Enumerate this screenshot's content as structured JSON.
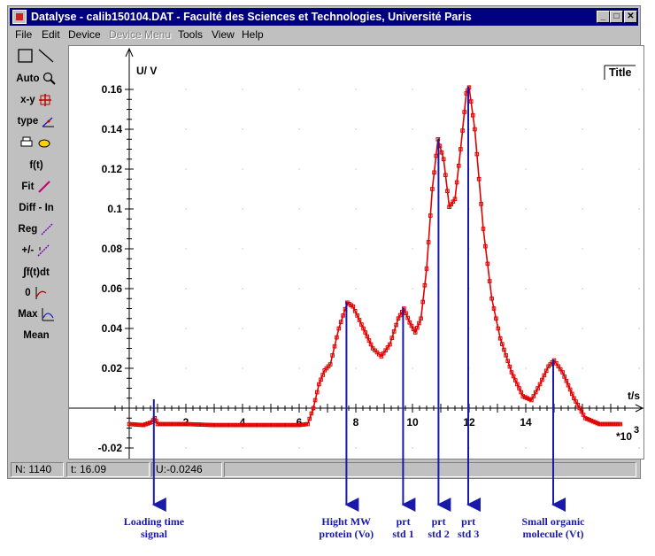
{
  "window": {
    "title": "Datalyse - calib150104.DAT - Faculté des Sciences et Technologies, Université Paris",
    "min_glyph": "_",
    "max_glyph": "□",
    "close_glyph": "✕"
  },
  "menu": [
    {
      "label": "File",
      "enabled": true
    },
    {
      "label": "Edit",
      "enabled": true
    },
    {
      "label": "Device",
      "enabled": true
    },
    {
      "label": "Device Menu",
      "enabled": false
    },
    {
      "label": "Tools",
      "enabled": true
    },
    {
      "label": "View",
      "enabled": true
    },
    {
      "label": "Help",
      "enabled": true
    }
  ],
  "toolbar": {
    "auto": "Auto",
    "xy": "x-y",
    "type": "type",
    "ft": "f(t)",
    "fit": "Fit",
    "diff": "Diff - In",
    "reg": "Reg",
    "pm": "+/-",
    "integral": "f(t)dt",
    "zero": "0",
    "max": "Max",
    "mean": "Mean"
  },
  "plot": {
    "title_button": "Title",
    "ylabel": "U/ V",
    "xlabel": "t/s",
    "x_exponent": "*10",
    "x_exponent_power": "3"
  },
  "chart_data": {
    "type": "scatter",
    "xlabel": "t/s (*10^3)",
    "ylabel": "U/ V",
    "xlim": [
      -0.9,
      17.9
    ],
    "ylim": [
      -0.025,
      0.172
    ],
    "xticks": [
      2,
      4,
      6,
      8,
      10,
      12,
      14
    ],
    "yticks": [
      -0.02,
      0.02,
      0.04,
      0.06,
      0.08,
      0.1,
      0.12,
      0.14,
      0.16
    ],
    "ytick_labels": [
      "-0.02",
      "0.02",
      "0.04",
      "0.06",
      "0.08",
      "0.1",
      "0.12",
      "0.14",
      "0.16"
    ],
    "grid": true,
    "series": [
      {
        "color": "#e00000",
        "points": [
          [
            0.0,
            -0.008
          ],
          [
            0.5,
            -0.0085
          ],
          [
            0.8,
            -0.007
          ],
          [
            0.9,
            -0.005
          ],
          [
            1.0,
            -0.008
          ],
          [
            2.0,
            -0.008
          ],
          [
            3.0,
            -0.0085
          ],
          [
            4.0,
            -0.0085
          ],
          [
            5.0,
            -0.0085
          ],
          [
            6.0,
            -0.0085
          ],
          [
            6.3,
            -0.008
          ],
          [
            6.5,
            0.0
          ],
          [
            6.7,
            0.012
          ],
          [
            6.9,
            0.019
          ],
          [
            7.1,
            0.022
          ],
          [
            7.4,
            0.04
          ],
          [
            7.7,
            0.053
          ],
          [
            7.9,
            0.051
          ],
          [
            8.2,
            0.042
          ],
          [
            8.6,
            0.03
          ],
          [
            8.9,
            0.026
          ],
          [
            9.2,
            0.032
          ],
          [
            9.5,
            0.045
          ],
          [
            9.7,
            0.05
          ],
          [
            9.9,
            0.043
          ],
          [
            10.1,
            0.038
          ],
          [
            10.3,
            0.045
          ],
          [
            10.5,
            0.07
          ],
          [
            10.7,
            0.11
          ],
          [
            10.9,
            0.135
          ],
          [
            11.1,
            0.125
          ],
          [
            11.3,
            0.101
          ],
          [
            11.5,
            0.105
          ],
          [
            11.7,
            0.13
          ],
          [
            11.9,
            0.158
          ],
          [
            12.0,
            0.161
          ],
          [
            12.2,
            0.14
          ],
          [
            12.5,
            0.09
          ],
          [
            12.8,
            0.055
          ],
          [
            13.1,
            0.035
          ],
          [
            13.5,
            0.018
          ],
          [
            13.9,
            0.006
          ],
          [
            14.2,
            0.004
          ],
          [
            14.5,
            0.012
          ],
          [
            14.8,
            0.021
          ],
          [
            15.0,
            0.024
          ],
          [
            15.3,
            0.018
          ],
          [
            15.7,
            0.005
          ],
          [
            16.1,
            -0.005
          ],
          [
            16.6,
            -0.008
          ],
          [
            17.0,
            -0.008
          ],
          [
            17.4,
            -0.008
          ]
        ]
      }
    ]
  },
  "status": {
    "n": "N: 1140",
    "t": "t:  16.09",
    "u": "U:-0.0246"
  },
  "annotations": [
    {
      "lines": [
        "Loading time",
        "signal"
      ],
      "x": 0.9
    },
    {
      "lines": [
        "Hight MW",
        "protein (Vo)"
      ],
      "x": 7.7
    },
    {
      "lines": [
        "prt",
        "std 1"
      ],
      "x": 9.7
    },
    {
      "lines": [
        "prt",
        "std 2"
      ],
      "x": 10.95
    },
    {
      "lines": [
        "prt",
        "std 3"
      ],
      "x": 12.0
    },
    {
      "lines": [
        "Small organic",
        "molecule (Vt)"
      ],
      "x": 15.0
    }
  ]
}
